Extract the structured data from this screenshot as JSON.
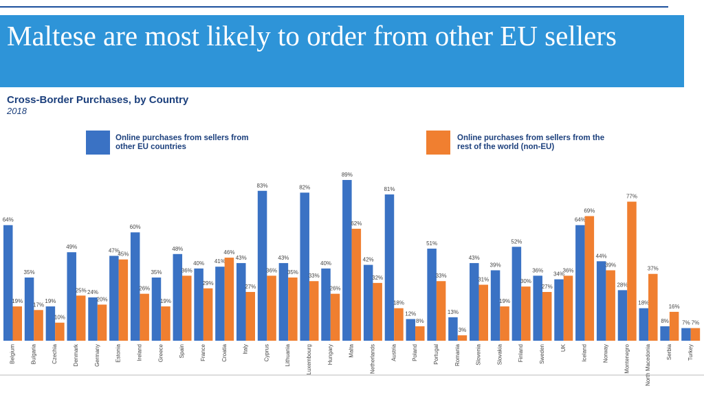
{
  "chart_data": {
    "type": "bar",
    "title": "Maltese are most likely to order from other EU sellers",
    "subtitle": "Cross-Border Purchases, by Country",
    "year": "2018",
    "categories": [
      "Belgium",
      "Bulgaria",
      "Czechia",
      "Denmark",
      "Germany",
      "Estonia",
      "Ireland",
      "Greece",
      "Spain",
      "France",
      "Croatia",
      "Italy",
      "Cyprus",
      "Lithuania",
      "Luxembourg",
      "Hungary",
      "Malta",
      "Netherlands",
      "Austria",
      "Poland",
      "Portugal",
      "Romania",
      "Slovenia",
      "Slovakia",
      "Finland",
      "Sweden",
      "UK",
      "Iceland",
      "Norway",
      "Montenegro",
      "North Macedonia",
      "Serbia",
      "Turkey"
    ],
    "series": [
      {
        "name": "Online purchases from sellers from other EU countries",
        "color": "#3a72c4",
        "values": [
          64,
          35,
          19,
          49,
          24,
          47,
          60,
          35,
          48,
          40,
          41,
          43,
          83,
          43,
          82,
          40,
          89,
          42,
          81,
          12,
          51,
          13,
          43,
          39,
          52,
          36,
          34,
          64,
          44,
          28,
          18,
          8,
          7
        ],
        "value_labels": [
          "64%",
          "35%",
          "19%",
          "49%",
          "24%",
          "47%",
          "60%",
          "35%",
          "48%",
          "40%",
          "41%",
          "43%",
          "83%",
          "43%",
          "82%",
          "40%",
          "89%",
          "42%",
          "81%",
          "12%",
          "51%",
          "13%",
          "43%",
          "39%",
          "52%",
          "36%",
          "34%",
          "64%",
          "44%",
          "28%",
          "18%",
          "8%",
          "7%"
        ]
      },
      {
        "name": "Online purchases from sellers from the rest of the world (non-EU)",
        "color": "#f07f30",
        "values": [
          19,
          17,
          10,
          25,
          20,
          45,
          26,
          19,
          36,
          29,
          46,
          27,
          36,
          35,
          33,
          26,
          62,
          32,
          18,
          8,
          33,
          3,
          31,
          19,
          30,
          27,
          36,
          69,
          39,
          77,
          37,
          16,
          7
        ],
        "value_labels": [
          "19%",
          "17%",
          "10%",
          "25%",
          "20%",
          "45%",
          "26%",
          "19%",
          "36%",
          "29%",
          "46%",
          "27%",
          "36%",
          "35%",
          "33%",
          "26%",
          "62%",
          "32%",
          "18%",
          "8%",
          "33%",
          "3%",
          "31%",
          "19%",
          "30%",
          "27%",
          "36%",
          "69%",
          "39%",
          "77%",
          "37%",
          "16%",
          "7%"
        ]
      }
    ]
  }
}
